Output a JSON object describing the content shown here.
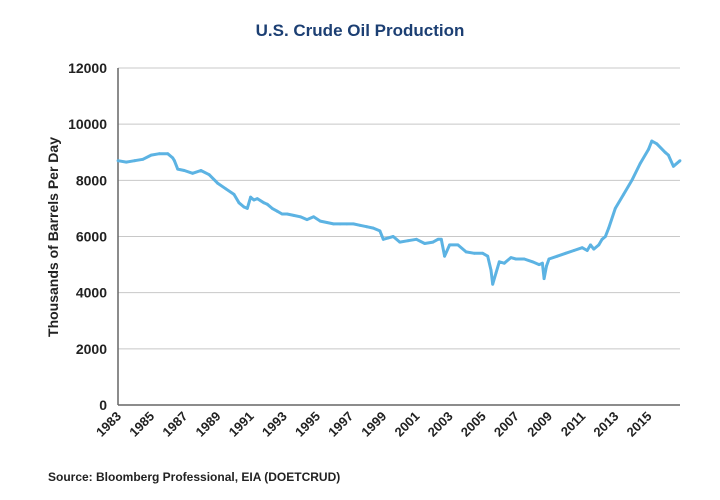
{
  "chart_data": {
    "type": "line",
    "title": "U.S. Crude Oil Production",
    "xlabel": "",
    "ylabel": "Thousands of Barrels Per Day",
    "source": "Source: Bloomberg Professional, EIA (DOETCRUD)",
    "xlim": [
      1983,
      2016.9
    ],
    "ylim": [
      0,
      12000
    ],
    "grid": "horizontal",
    "line_color": "#5cb3e3",
    "y_ticks": [
      "0",
      "2000",
      "4000",
      "6000",
      "8000",
      "10000",
      "12000"
    ],
    "x_ticks": [
      "1983",
      "1985",
      "1987",
      "1989",
      "1991",
      "1993",
      "1995",
      "1997",
      "1999",
      "2001",
      "2003",
      "2005",
      "2007",
      "2009",
      "2011",
      "2013",
      "2015"
    ],
    "x": [
      1983.0,
      1983.5,
      1984.0,
      1984.5,
      1985.0,
      1985.5,
      1986.0,
      1986.3,
      1986.4,
      1986.6,
      1987.0,
      1987.5,
      1988.0,
      1988.5,
      1989.0,
      1989.5,
      1990.0,
      1990.3,
      1990.6,
      1990.8,
      1991.0,
      1991.2,
      1991.4,
      1991.8,
      1992.0,
      1992.3,
      1992.6,
      1992.9,
      1993.2,
      1993.6,
      1994.0,
      1994.4,
      1994.8,
      1995.2,
      1995.6,
      1996.0,
      1996.4,
      1996.8,
      1997.2,
      1997.6,
      1998.0,
      1998.4,
      1998.8,
      1999.0,
      1999.3,
      1999.6,
      2000.0,
      2000.5,
      2001.0,
      2001.5,
      2002.0,
      2002.3,
      2002.5,
      2002.7,
      2003.0,
      2003.5,
      2004.0,
      2004.5,
      2005.0,
      2005.3,
      2005.5,
      2005.6,
      2005.8,
      2006.0,
      2006.3,
      2006.7,
      2007.0,
      2007.5,
      2008.0,
      2008.4,
      2008.6,
      2008.7,
      2008.85,
      2009.0,
      2009.5,
      2010.0,
      2010.5,
      2011.0,
      2011.3,
      2011.5,
      2011.7,
      2012.0,
      2012.2,
      2012.4,
      2012.6,
      2013.0,
      2013.5,
      2014.0,
      2014.5,
      2015.0,
      2015.2,
      2015.5,
      2016.0,
      2016.2,
      2016.5,
      2016.9
    ],
    "values": [
      8700,
      8650,
      8700,
      8750,
      8900,
      8950,
      8950,
      8800,
      8700,
      8400,
      8350,
      8250,
      8350,
      8200,
      7900,
      7700,
      7500,
      7200,
      7050,
      7000,
      7400,
      7300,
      7350,
      7200,
      7150,
      7000,
      6900,
      6800,
      6800,
      6750,
      6700,
      6600,
      6700,
      6550,
      6500,
      6450,
      6450,
      6450,
      6450,
      6400,
      6350,
      6300,
      6200,
      5900,
      5950,
      6000,
      5800,
      5850,
      5900,
      5750,
      5800,
      5900,
      5900,
      5300,
      5700,
      5700,
      5450,
      5400,
      5400,
      5300,
      4800,
      4300,
      4700,
      5100,
      5050,
      5250,
      5200,
      5200,
      5100,
      5000,
      5050,
      4500,
      4950,
      5200,
      5300,
      5400,
      5500,
      5600,
      5500,
      5700,
      5550,
      5700,
      5900,
      6000,
      6300,
      7000,
      7500,
      8000,
      8600,
      9100,
      9400,
      9300,
      9000,
      8900,
      8500,
      8700
    ]
  }
}
